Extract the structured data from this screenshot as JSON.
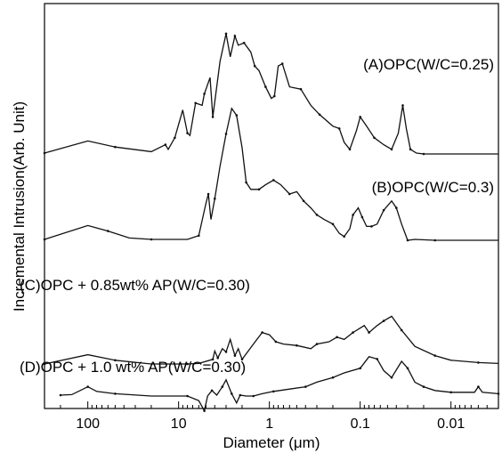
{
  "chart_data": {
    "type": "line",
    "xlabel": "Diameter (μm)",
    "ylabel": "Incremental Intrusion(Arb. Unit)",
    "x_scale": "log",
    "x_reversed": true,
    "xlim": [
      300,
      0.003
    ],
    "y_units": "arbitrary (curves vertically offset)",
    "x_ticks": [
      {
        "value": 100,
        "label": "100"
      },
      {
        "value": 10,
        "label": "10"
      },
      {
        "value": 1,
        "label": "1"
      },
      {
        "value": 0.1,
        "label": "0.1"
      },
      {
        "value": 0.01,
        "label": "0.01"
      }
    ],
    "series": [
      {
        "name": "(A)OPC(W/C=0.25)",
        "offset": 3,
        "points": [
          [
            300,
            0.02
          ],
          [
            100,
            0.28
          ],
          [
            50,
            0.15
          ],
          [
            20,
            0.05
          ],
          [
            14,
            0.2
          ],
          [
            13,
            0.1
          ],
          [
            11,
            0.35
          ],
          [
            9,
            0.95
          ],
          [
            8,
            0.45
          ],
          [
            7.5,
            0.4
          ],
          [
            6.5,
            1.1
          ],
          [
            5.5,
            1.05
          ],
          [
            5.2,
            1.3
          ],
          [
            4.5,
            1.65
          ],
          [
            4.2,
            0.8
          ],
          [
            3.5,
            2.0
          ],
          [
            3.0,
            2.6
          ],
          [
            2.7,
            2.1
          ],
          [
            2.4,
            2.55
          ],
          [
            2.2,
            2.35
          ],
          [
            1.9,
            2.4
          ],
          [
            1.6,
            2.2
          ],
          [
            1.45,
            1.9
          ],
          [
            1.3,
            1.8
          ],
          [
            1.1,
            1.45
          ],
          [
            0.95,
            1.2
          ],
          [
            0.88,
            1.25
          ],
          [
            0.8,
            1.9
          ],
          [
            0.72,
            1.95
          ],
          [
            0.6,
            1.45
          ],
          [
            0.45,
            1.4
          ],
          [
            0.35,
            1.05
          ],
          [
            0.28,
            0.85
          ],
          [
            0.2,
            0.6
          ],
          [
            0.17,
            0.55
          ],
          [
            0.15,
            0.25
          ],
          [
            0.13,
            0.1
          ],
          [
            0.11,
            0.5
          ],
          [
            0.1,
            0.8
          ],
          [
            0.085,
            0.6
          ],
          [
            0.07,
            0.35
          ],
          [
            0.055,
            0.2
          ],
          [
            0.045,
            0.1
          ],
          [
            0.038,
            0.45
          ],
          [
            0.034,
            1.05
          ],
          [
            0.031,
            0.55
          ],
          [
            0.028,
            0.1
          ],
          [
            0.024,
            0.02
          ],
          [
            0.02,
            0.0
          ],
          [
            0.003,
            0.0
          ]
        ]
      },
      {
        "name": "(B)OPC(W/C=0.3)",
        "offset": 2,
        "points": [
          [
            300,
            0.02
          ],
          [
            100,
            0.32
          ],
          [
            60,
            0.2
          ],
          [
            35,
            0.05
          ],
          [
            20,
            0.02
          ],
          [
            8,
            0.02
          ],
          [
            6,
            0.1
          ],
          [
            5,
            0.8
          ],
          [
            4.7,
            1.0
          ],
          [
            4.4,
            0.45
          ],
          [
            4.0,
            0.9
          ],
          [
            3.5,
            1.6
          ],
          [
            3.0,
            2.3
          ],
          [
            2.6,
            2.85
          ],
          [
            2.3,
            2.7
          ],
          [
            2.0,
            2.0
          ],
          [
            1.8,
            1.25
          ],
          [
            1.6,
            1.1
          ],
          [
            1.3,
            1.1
          ],
          [
            1.1,
            1.2
          ],
          [
            0.9,
            1.3
          ],
          [
            0.75,
            1.2
          ],
          [
            0.6,
            1.0
          ],
          [
            0.5,
            1.05
          ],
          [
            0.42,
            0.85
          ],
          [
            0.35,
            0.7
          ],
          [
            0.3,
            0.55
          ],
          [
            0.25,
            0.45
          ],
          [
            0.2,
            0.35
          ],
          [
            0.17,
            0.15
          ],
          [
            0.15,
            0.08
          ],
          [
            0.13,
            0.25
          ],
          [
            0.12,
            0.55
          ],
          [
            0.105,
            0.7
          ],
          [
            0.095,
            0.5
          ],
          [
            0.085,
            0.3
          ],
          [
            0.075,
            0.3
          ],
          [
            0.065,
            0.35
          ],
          [
            0.055,
            0.65
          ],
          [
            0.045,
            0.85
          ],
          [
            0.04,
            0.7
          ],
          [
            0.035,
            0.35
          ],
          [
            0.03,
            0.0
          ],
          [
            0.025,
            0.02
          ],
          [
            0.015,
            0.0
          ],
          [
            0.003,
            0.0
          ]
        ]
      },
      {
        "name": "(C)OPC + 0.85wt% AP(W/C=0.30)",
        "offset": 1,
        "points": [
          [
            300,
            0.02
          ],
          [
            100,
            0.22
          ],
          [
            50,
            0.1
          ],
          [
            20,
            0.02
          ],
          [
            8,
            0.02
          ],
          [
            6,
            0.03
          ],
          [
            4.2,
            0.12
          ],
          [
            4.0,
            0.3
          ],
          [
            3.7,
            0.15
          ],
          [
            3.3,
            0.35
          ],
          [
            3.0,
            0.28
          ],
          [
            2.7,
            0.55
          ],
          [
            2.4,
            0.2
          ],
          [
            2.2,
            0.35
          ],
          [
            2.0,
            0.12
          ],
          [
            1.5,
            0.45
          ],
          [
            1.2,
            0.7
          ],
          [
            1.0,
            0.65
          ],
          [
            0.85,
            0.5
          ],
          [
            0.7,
            0.45
          ],
          [
            0.5,
            0.42
          ],
          [
            0.35,
            0.35
          ],
          [
            0.3,
            0.45
          ],
          [
            0.22,
            0.5
          ],
          [
            0.18,
            0.6
          ],
          [
            0.15,
            0.55
          ],
          [
            0.12,
            0.7
          ],
          [
            0.09,
            0.85
          ],
          [
            0.08,
            0.7
          ],
          [
            0.065,
            0.85
          ],
          [
            0.055,
            0.95
          ],
          [
            0.045,
            1.05
          ],
          [
            0.035,
            0.75
          ],
          [
            0.025,
            0.4
          ],
          [
            0.015,
            0.2
          ],
          [
            0.01,
            0.1
          ],
          [
            0.005,
            0.05
          ],
          [
            0.003,
            0.03
          ]
        ]
      },
      {
        "name": "(D)OPC + 1.0 wt% AP(W/C=0.30)",
        "offset": 0,
        "points": [
          [
            200,
            0.02
          ],
          [
            150,
            0.03
          ],
          [
            100,
            0.2
          ],
          [
            80,
            0.1
          ],
          [
            50,
            0.05
          ],
          [
            20,
            0.0
          ],
          [
            8,
            0.0
          ],
          [
            6,
            -0.1
          ],
          [
            5.2,
            -0.32
          ],
          [
            4.8,
            0.0
          ],
          [
            4.3,
            0.12
          ],
          [
            3.8,
            0.02
          ],
          [
            3.3,
            0.2
          ],
          [
            3.0,
            0.35
          ],
          [
            2.6,
            0.05
          ],
          [
            2.3,
            -0.15
          ],
          [
            2.1,
            0.02
          ],
          [
            1.8,
            0.0
          ],
          [
            1.5,
            0.0
          ],
          [
            1.2,
            0.05
          ],
          [
            0.9,
            0.1
          ],
          [
            0.6,
            0.15
          ],
          [
            0.4,
            0.2
          ],
          [
            0.3,
            0.3
          ],
          [
            0.2,
            0.4
          ],
          [
            0.15,
            0.5
          ],
          [
            0.1,
            0.6
          ],
          [
            0.08,
            0.85
          ],
          [
            0.065,
            0.8
          ],
          [
            0.055,
            0.55
          ],
          [
            0.045,
            0.4
          ],
          [
            0.035,
            0.75
          ],
          [
            0.03,
            0.6
          ],
          [
            0.025,
            0.3
          ],
          [
            0.02,
            0.2
          ],
          [
            0.015,
            0.12
          ],
          [
            0.01,
            0.08
          ],
          [
            0.0055,
            0.08
          ],
          [
            0.005,
            0.2
          ],
          [
            0.0045,
            0.08
          ],
          [
            0.003,
            0.05
          ]
        ]
      }
    ],
    "grid": false,
    "legend": "none (series labeled inline above each curve)"
  }
}
